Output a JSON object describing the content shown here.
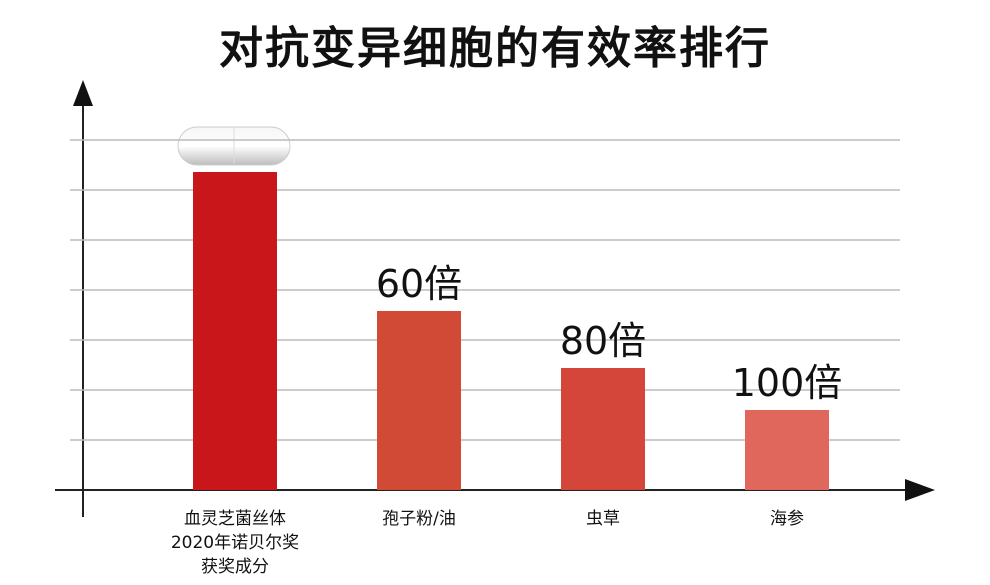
{
  "chart_data": {
    "type": "bar",
    "title": "对抗变异细胞的有效率排行",
    "categories": [
      "血灵芝菌丝体\n2020年诺贝尔奖\n获奖成分",
      "孢子粉/油",
      "虫草",
      "海参"
    ],
    "values": [
      6.36,
      3.58,
      2.44,
      1.6
    ],
    "colors": [
      "#c8161b",
      "#d04a36",
      "#d4463a",
      "#df675b"
    ],
    "annotations": [
      "60倍",
      "80倍",
      "100倍"
    ],
    "ylim": [
      0,
      8.1
    ],
    "yticks": [
      1,
      2,
      3,
      4,
      5,
      6,
      7
    ],
    "grid": true
  }
}
